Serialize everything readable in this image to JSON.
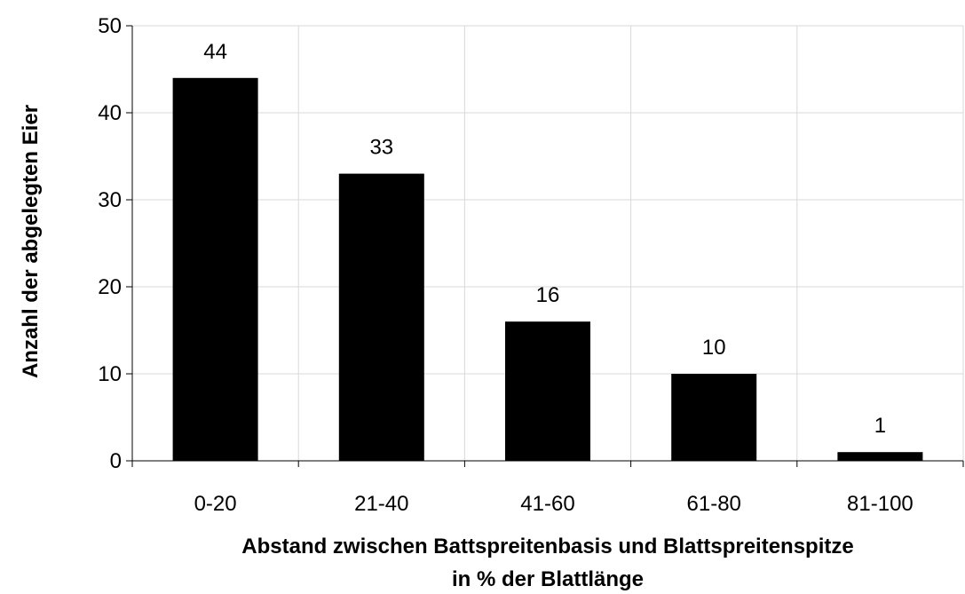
{
  "chart_data": {
    "type": "bar",
    "title": "",
    "xlabel_lines": [
      "Abstand zwischen Battspreitenbasis und Blattspreitenspitze",
      "in % der Blattlänge"
    ],
    "ylabel": "Anzahl der abgelegten Eier",
    "categories": [
      "0-20",
      "21-40",
      "41-60",
      "61-80",
      "81-100"
    ],
    "values": [
      44,
      33,
      16,
      10,
      1
    ],
    "data_labels": [
      "44",
      "33",
      "16",
      "10",
      "1"
    ],
    "ylim": [
      0,
      50
    ],
    "yticks": [
      0,
      10,
      20,
      30,
      40,
      50
    ],
    "ytick_labels": [
      "0",
      "10",
      "20",
      "30",
      "40",
      "50"
    ],
    "grid": true,
    "legend": "none",
    "colors": {
      "bar": "#000000",
      "grid": "#d9d9d9",
      "axis": "#000000"
    }
  }
}
